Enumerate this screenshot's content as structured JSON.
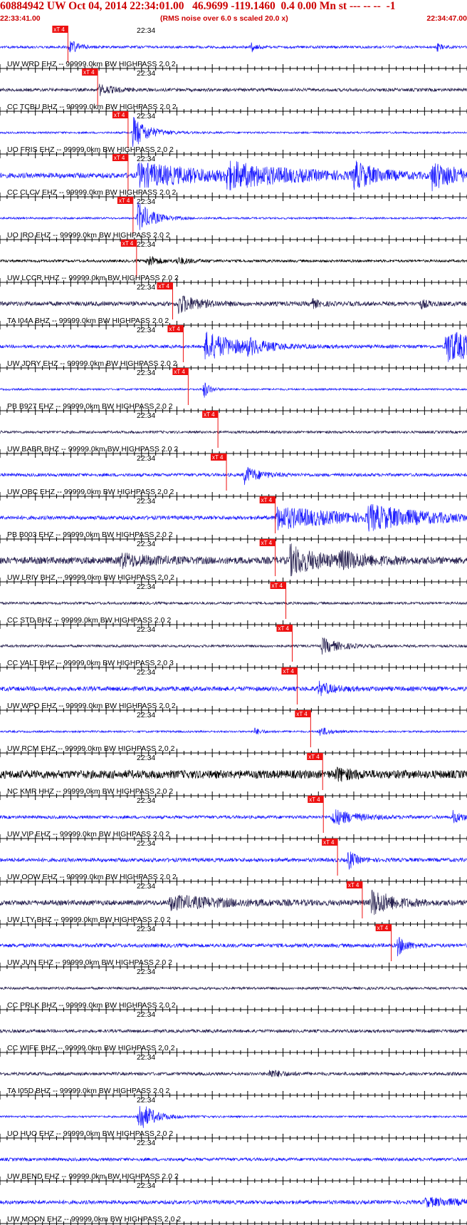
{
  "header": {
    "title": "60884942 UW Oct 04, 2014 22:34:01.00   46.9699 -119.1460  0.4 0.00 Mn st --- -- --  -1",
    "start_time": "22:33:41.00",
    "scale_note": "(RMS noise over 6.0 s scaled 20.0 x)",
    "end_time": "22:34:47.00"
  },
  "colors": {
    "header_red": "#cc0000",
    "pick_red": "#ee1111",
    "trace_blue": "#1a1aff",
    "trace_navy": "#26204f",
    "trace_black": "#000000",
    "text": "#000000"
  },
  "chart_data": {
    "type": "seismogram",
    "x_range": [
      "22:33:41.00",
      "22:34:47.00"
    ],
    "time_mark_label": "22:34",
    "pick_label": "xT 4",
    "traces": [
      {
        "label": "UW WRD EHZ -- 99999.0km BW  HIGHPASS  2.0  2",
        "color": "blue",
        "pick_s": 9.6,
        "noise": 0.2,
        "bursts": [
          {
            "t": 9.8,
            "amp": 1.2,
            "dur": 1.2
          },
          {
            "t": 35.5,
            "amp": 0.8,
            "dur": 0.6
          },
          {
            "t": 61.8,
            "amp": 0.6,
            "dur": 0.6
          }
        ]
      },
      {
        "label": "CC TCBU BHZ -- 99999.0km BW  HIGHPASS  2.0  2",
        "color": "navy",
        "pick_s": 13.8,
        "noise": 0.25,
        "bursts": [
          {
            "t": 14.0,
            "amp": 0.8,
            "dur": 2.0
          }
        ]
      },
      {
        "label": "UO FRIS EHZ -- 99999.0km BW  HIGHPASS  2.0  2",
        "color": "blue",
        "pick_s": 18.1,
        "noise": 0.15,
        "bursts": [
          {
            "t": 18.8,
            "amp": 2.6,
            "dur": 2.0
          }
        ]
      },
      {
        "label": "CC CLCV EHZ -- 99999.0km BW  HIGHPASS  2.0  2",
        "color": "blue",
        "pick_s": 18.1,
        "noise": 0.4,
        "bursts": [
          {
            "t": 19.5,
            "amp": 1.8,
            "dur": 10.0
          },
          {
            "t": 32.0,
            "amp": 1.6,
            "dur": 9.0
          },
          {
            "t": 50.0,
            "amp": 1.9,
            "dur": 3.0
          },
          {
            "t": 61.0,
            "amp": 2.0,
            "dur": 4.0
          }
        ]
      },
      {
        "label": "UO IRO EHZ -- 99999.0km BW  HIGHPASS  2.0  2",
        "color": "blue",
        "pick_s": 18.8,
        "noise": 0.15,
        "bursts": [
          {
            "t": 19.5,
            "amp": 2.6,
            "dur": 2.0
          }
        ]
      },
      {
        "label": "UW LCCR HHZ -- 99999.0km BW  HIGHPASS  2.0  2",
        "color": "black",
        "pick_s": 19.3,
        "noise": 0.2,
        "bursts": [
          {
            "t": 20.8,
            "amp": 1.0,
            "dur": 1.5
          },
          {
            "t": 25.0,
            "amp": 0.5,
            "dur": 2.0
          }
        ]
      },
      {
        "label": "TA I04A BHZ -- 99999.0km BW  HIGHPASS  2.0  2",
        "color": "navy",
        "pick_s": 24.4,
        "noise": 0.35,
        "bursts": [
          {
            "t": 25.2,
            "amp": 1.5,
            "dur": 2.5
          },
          {
            "t": 44.0,
            "amp": 0.7,
            "dur": 1.0
          },
          {
            "t": 59.5,
            "amp": 0.6,
            "dur": 1.0
          }
        ]
      },
      {
        "label": "UW JDRY EHZ -- 99999.0km BW  HIGHPASS  2.0  2",
        "color": "blue",
        "pick_s": 25.9,
        "noise": 0.25,
        "bursts": [
          {
            "t": 29.0,
            "amp": 2.2,
            "dur": 5.0
          },
          {
            "t": 35.0,
            "amp": 0.8,
            "dur": 2.0
          },
          {
            "t": 63.0,
            "amp": 2.6,
            "dur": 6.0
          }
        ]
      },
      {
        "label": "PB B927 EHZ -- 99999.0km BW  HIGHPASS  2.0  2",
        "color": "blue",
        "pick_s": 26.6,
        "noise": 0.15,
        "bursts": [
          {
            "t": 28.8,
            "amp": 1.4,
            "dur": 0.8
          }
        ]
      },
      {
        "label": "UW BABR BHZ -- 99999.0km BW  HIGHPASS  2.0  2",
        "color": "navy",
        "pick_s": 30.8,
        "noise": 0.2,
        "bursts": []
      },
      {
        "label": "UW OBC EHZ -- 99999.0km BW  HIGHPASS  2.0  2",
        "color": "blue",
        "pick_s": 32.0,
        "noise": 0.25,
        "bursts": [
          {
            "t": 34.5,
            "amp": 1.4,
            "dur": 2.0
          }
        ]
      },
      {
        "label": "PB B003 EHZ -- 99999.0km BW  HIGHPASS  2.0  2",
        "color": "blue",
        "pick_s": 38.9,
        "noise": 0.3,
        "bursts": [
          {
            "t": 39.0,
            "amp": 1.8,
            "dur": 9.0
          },
          {
            "t": 52.0,
            "amp": 1.6,
            "dur": 8.0
          }
        ]
      },
      {
        "label": "UW LRIV BHZ -- 99999.0km BW  HIGHPASS  2.0  2",
        "color": "navy",
        "pick_s": 38.9,
        "noise": 0.55,
        "bursts": [
          {
            "t": 17.0,
            "amp": 0.9,
            "dur": 4.0
          },
          {
            "t": 41.0,
            "amp": 2.2,
            "dur": 4.0
          },
          {
            "t": 48.0,
            "amp": 1.0,
            "dur": 4.0
          }
        ]
      },
      {
        "label": "CC STD BHZ -- 99999.0km BW  HIGHPASS  2.0  2",
        "color": "navy",
        "pick_s": 40.4,
        "noise": 0.2,
        "bursts": []
      },
      {
        "label": "CC VALT BHZ -- 99999.0km BW  HIGHPASS  2.0  3",
        "color": "navy",
        "pick_s": 41.3,
        "noise": 0.2,
        "bursts": [
          {
            "t": 45.5,
            "amp": 1.2,
            "dur": 2.5
          }
        ]
      },
      {
        "label": "UW WPO EHZ -- 99999.0km BW  HIGHPASS  2.0  2",
        "color": "blue",
        "pick_s": 42.0,
        "noise": 0.35,
        "bursts": [
          {
            "t": 45.0,
            "amp": 1.0,
            "dur": 2.0
          }
        ]
      },
      {
        "label": "UW RCM EHZ -- 99999.0km BW  HIGHPASS  2.0  2",
        "color": "blue",
        "pick_s": 43.9,
        "noise": 0.15,
        "bursts": [
          {
            "t": 45.2,
            "amp": 0.8,
            "dur": 1.2
          },
          {
            "t": 36.0,
            "amp": 0.5,
            "dur": 1.0
          }
        ]
      },
      {
        "label": "NC KMR HHZ -- 99999.0km BW  HIGHPASS  2.0  2",
        "color": "black",
        "pick_s": 45.6,
        "noise": 0.65,
        "bursts": [
          {
            "t": 47.5,
            "amp": 0.8,
            "dur": 2.0
          }
        ]
      },
      {
        "label": "UW VIP EHZ -- 99999.0km BW  HIGHPASS  2.0  2",
        "color": "blue",
        "pick_s": 45.7,
        "noise": 0.25,
        "bursts": [
          {
            "t": 47.0,
            "amp": 1.3,
            "dur": 3.0
          },
          {
            "t": 64.0,
            "amp": 0.9,
            "dur": 1.5
          }
        ]
      },
      {
        "label": "UW OOW EHZ -- 99999.0km BW  HIGHPASS  2.0  2",
        "color": "blue",
        "pick_s": 47.7,
        "noise": 0.3,
        "bursts": [
          {
            "t": 49.2,
            "amp": 1.6,
            "dur": 1.0
          }
        ]
      },
      {
        "label": "UW LTY BHZ -- 99999.0km BW  HIGHPASS  2.0  2",
        "color": "navy",
        "pick_s": 51.2,
        "noise": 0.4,
        "bursts": [
          {
            "t": 24.0,
            "amp": 1.0,
            "dur": 8.0
          },
          {
            "t": 52.5,
            "amp": 2.0,
            "dur": 3.0
          }
        ]
      },
      {
        "label": "UW JUN EHZ -- 99999.0km BW  HIGHPASS  2.0  2",
        "color": "blue",
        "pick_s": 55.3,
        "noise": 0.3,
        "bursts": [
          {
            "t": 56.2,
            "amp": 1.5,
            "dur": 1.2
          }
        ]
      },
      {
        "label": "CC PRLK BHZ -- 99999.0km BW  HIGHPASS  2.0  2",
        "color": "navy",
        "pick_s": null,
        "noise": 0.2,
        "bursts": []
      },
      {
        "label": "CC WIFE BHZ -- 99999.0km BW  HIGHPASS  2.0  2",
        "color": "navy",
        "pick_s": null,
        "noise": 0.25,
        "bursts": []
      },
      {
        "label": "TA I05D BHZ -- 99999.0km BW  HIGHPASS  2.0  2",
        "color": "navy",
        "pick_s": null,
        "noise": 0.25,
        "bursts": [
          {
            "t": 38.0,
            "amp": 0.6,
            "dur": 2.0
          }
        ]
      },
      {
        "label": "UO HUO EHZ -- 99999.0km BW  HIGHPASS  2.0  2",
        "color": "blue",
        "pick_s": null,
        "noise": 0.15,
        "bursts": [
          {
            "t": 19.5,
            "amp": 2.6,
            "dur": 2.0
          }
        ]
      },
      {
        "label": "UW BEND EHZ -- 99999.0km BW  HIGHPASS  2.0  2",
        "color": "blue",
        "pick_s": null,
        "noise": 0.25,
        "bursts": []
      },
      {
        "label": "UW MOON EHZ -- 99999.0km BW  HIGHPASS  2.0  2",
        "color": "blue",
        "pick_s": null,
        "noise": 0.3,
        "bursts": [
          {
            "t": 60.0,
            "amp": 0.6,
            "dur": 6.0
          }
        ]
      }
    ]
  }
}
